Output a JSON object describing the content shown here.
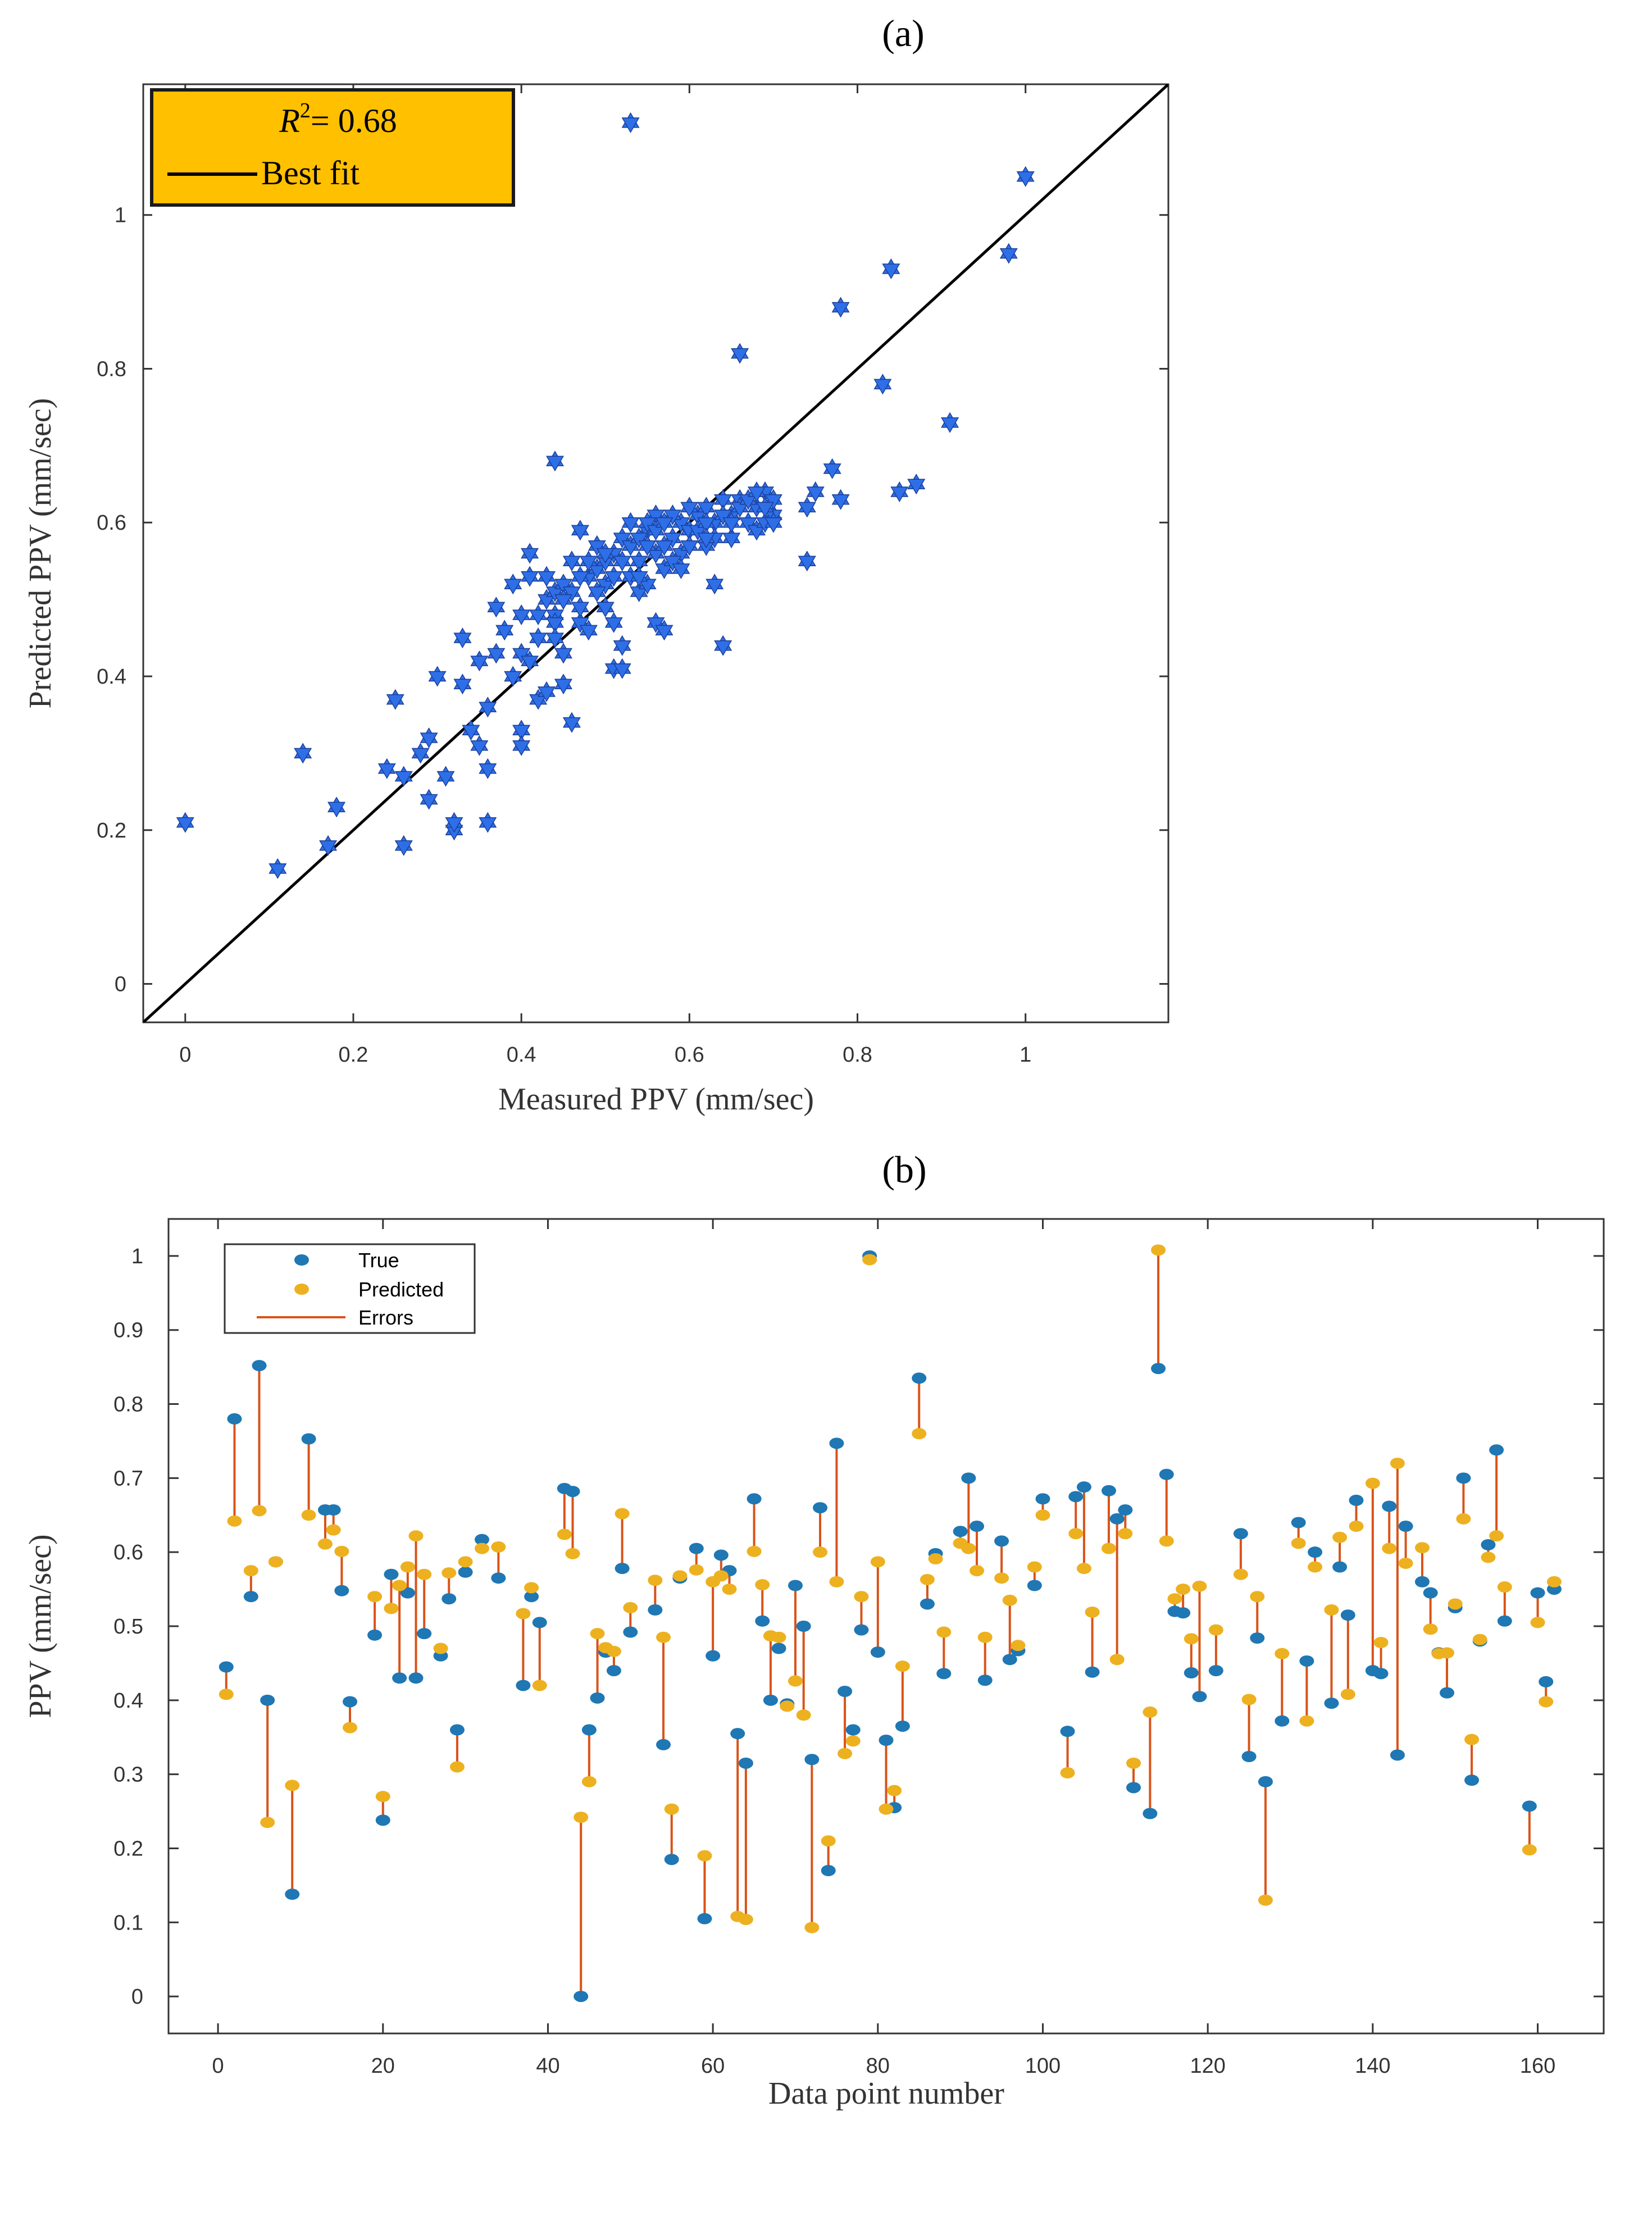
{
  "panel_a_label": "(a)",
  "panel_b_label": "(b)",
  "chart_data": [
    {
      "type": "scatter",
      "title": "",
      "xlabel": "Measured PPV (mm/sec)",
      "ylabel": "Predicted PPV (mm/sec)",
      "xlim": [
        -0.05,
        1.17
      ],
      "ylim": [
        -0.05,
        1.17
      ],
      "xticks": [
        0,
        0.2,
        0.4,
        0.6,
        0.8,
        1
      ],
      "yticks": [
        0,
        0.2,
        0.4,
        0.6,
        0.8,
        1
      ],
      "xtick_labels": [
        "0",
        "0.2",
        "0.4",
        "0.6",
        "0.8",
        "1"
      ],
      "ytick_labels": [
        "0",
        "0.2",
        "0.4",
        "0.6",
        "0.8",
        "1"
      ],
      "legend": {
        "position": "top-left",
        "r2_text": "R",
        "r2_value": "= 0.68",
        "best_fit_label": "Best fit",
        "background": "#FFC000"
      },
      "marker_color": "#2E6FE8",
      "fit_line": {
        "slope": 1,
        "intercept": 0,
        "color": "#000000"
      },
      "points": [
        [
          0.0,
          0.21
        ],
        [
          0.11,
          0.15
        ],
        [
          0.14,
          0.3
        ],
        [
          0.17,
          0.18
        ],
        [
          0.18,
          0.23
        ],
        [
          0.24,
          0.28
        ],
        [
          0.25,
          0.37
        ],
        [
          0.26,
          0.27
        ],
        [
          0.26,
          0.18
        ],
        [
          0.28,
          0.3
        ],
        [
          0.29,
          0.32
        ],
        [
          0.29,
          0.24
        ],
        [
          0.3,
          0.4
        ],
        [
          0.31,
          0.27
        ],
        [
          0.32,
          0.2
        ],
        [
          0.32,
          0.21
        ],
        [
          0.33,
          0.45
        ],
        [
          0.33,
          0.39
        ],
        [
          0.34,
          0.33
        ],
        [
          0.35,
          0.31
        ],
        [
          0.35,
          0.42
        ],
        [
          0.36,
          0.21
        ],
        [
          0.36,
          0.36
        ],
        [
          0.36,
          0.28
        ],
        [
          0.37,
          0.43
        ],
        [
          0.37,
          0.49
        ],
        [
          0.38,
          0.46
        ],
        [
          0.39,
          0.4
        ],
        [
          0.39,
          0.52
        ],
        [
          0.4,
          0.33
        ],
        [
          0.4,
          0.31
        ],
        [
          0.4,
          0.43
        ],
        [
          0.4,
          0.48
        ],
        [
          0.41,
          0.56
        ],
        [
          0.41,
          0.42
        ],
        [
          0.42,
          0.37
        ],
        [
          0.42,
          0.45
        ],
        [
          0.43,
          0.38
        ],
        [
          0.43,
          0.5
        ],
        [
          0.43,
          0.53
        ],
        [
          0.44,
          0.48
        ],
        [
          0.44,
          0.51
        ],
        [
          0.44,
          0.47
        ],
        [
          0.44,
          0.68
        ],
        [
          0.45,
          0.39
        ],
        [
          0.45,
          0.43
        ],
        [
          0.45,
          0.52
        ],
        [
          0.46,
          0.55
        ],
        [
          0.46,
          0.34
        ],
        [
          0.47,
          0.59
        ],
        [
          0.47,
          0.47
        ],
        [
          0.47,
          0.49
        ],
        [
          0.48,
          0.53
        ],
        [
          0.49,
          0.54
        ],
        [
          0.49,
          0.57
        ],
        [
          0.5,
          0.55
        ],
        [
          0.5,
          0.52
        ],
        [
          0.51,
          0.41
        ],
        [
          0.51,
          0.47
        ],
        [
          0.51,
          0.56
        ],
        [
          0.52,
          0.58
        ],
        [
          0.52,
          0.41
        ],
        [
          0.52,
          0.44
        ],
        [
          0.53,
          0.53
        ],
        [
          0.53,
          0.57
        ],
        [
          0.53,
          1.12
        ],
        [
          0.54,
          0.55
        ],
        [
          0.54,
          0.51
        ],
        [
          0.55,
          0.59
        ],
        [
          0.55,
          0.52
        ],
        [
          0.56,
          0.56
        ],
        [
          0.56,
          0.47
        ],
        [
          0.56,
          0.61
        ],
        [
          0.57,
          0.54
        ],
        [
          0.57,
          0.46
        ],
        [
          0.58,
          0.58
        ],
        [
          0.59,
          0.6
        ],
        [
          0.59,
          0.56
        ],
        [
          0.6,
          0.59
        ],
        [
          0.61,
          0.61
        ],
        [
          0.62,
          0.57
        ],
        [
          0.62,
          0.62
        ],
        [
          0.63,
          0.52
        ],
        [
          0.63,
          0.6
        ],
        [
          0.64,
          0.63
        ],
        [
          0.64,
          0.44
        ],
        [
          0.65,
          0.58
        ],
        [
          0.65,
          0.61
        ],
        [
          0.66,
          0.82
        ],
        [
          0.66,
          0.63
        ],
        [
          0.67,
          0.6
        ],
        [
          0.68,
          0.62
        ],
        [
          0.69,
          0.64
        ],
        [
          0.7,
          0.61
        ],
        [
          0.7,
          0.63
        ],
        [
          0.74,
          0.62
        ],
        [
          0.74,
          0.55
        ],
        [
          0.75,
          0.64
        ],
        [
          0.77,
          0.67
        ],
        [
          0.78,
          0.63
        ],
        [
          0.78,
          0.88
        ],
        [
          0.83,
          0.78
        ],
        [
          0.84,
          0.93
        ],
        [
          0.85,
          0.64
        ],
        [
          0.87,
          0.65
        ],
        [
          0.91,
          0.73
        ],
        [
          0.98,
          0.95
        ],
        [
          1.0,
          1.05
        ],
        [
          0.5,
          0.56
        ],
        [
          0.51,
          0.53
        ],
        [
          0.52,
          0.55
        ],
        [
          0.54,
          0.58
        ],
        [
          0.55,
          0.6
        ],
        [
          0.57,
          0.57
        ],
        [
          0.58,
          0.55
        ],
        [
          0.6,
          0.57
        ],
        [
          0.61,
          0.59
        ],
        [
          0.62,
          0.6
        ],
        [
          0.64,
          0.61
        ],
        [
          0.66,
          0.62
        ],
        [
          0.67,
          0.63
        ],
        [
          0.68,
          0.59
        ],
        [
          0.69,
          0.6
        ],
        [
          0.48,
          0.55
        ],
        [
          0.49,
          0.51
        ],
        [
          0.5,
          0.49
        ],
        [
          0.46,
          0.51
        ],
        [
          0.47,
          0.53
        ],
        [
          0.53,
          0.6
        ],
        [
          0.54,
          0.53
        ],
        [
          0.56,
          0.59
        ],
        [
          0.58,
          0.61
        ],
        [
          0.59,
          0.54
        ],
        [
          0.63,
          0.58
        ],
        [
          0.65,
          0.6
        ],
        [
          0.68,
          0.64
        ],
        [
          0.69,
          0.62
        ],
        [
          0.7,
          0.6
        ],
        [
          0.45,
          0.5
        ],
        [
          0.44,
          0.45
        ],
        [
          0.42,
          0.48
        ],
        [
          0.41,
          0.53
        ],
        [
          0.48,
          0.46
        ],
        [
          0.55,
          0.57
        ],
        [
          0.57,
          0.6
        ],
        [
          0.6,
          0.62
        ],
        [
          0.62,
          0.58
        ]
      ]
    },
    {
      "type": "scatter",
      "title": "",
      "xlabel": "Data point number",
      "ylabel": "PPV (mm/sec)",
      "xlim": [
        -6,
        168
      ],
      "ylim": [
        -0.05,
        1.05
      ],
      "xticks": [
        0,
        20,
        40,
        60,
        80,
        100,
        120,
        140,
        160
      ],
      "yticks": [
        0,
        0.1,
        0.2,
        0.3,
        0.4,
        0.5,
        0.6,
        0.7,
        0.8,
        0.9,
        1
      ],
      "xtick_labels": [
        "0",
        "20",
        "40",
        "60",
        "80",
        "100",
        "120",
        "140",
        "160"
      ],
      "ytick_labels": [
        "0",
        "0.1",
        "0.2",
        "0.3",
        "0.4",
        "0.5",
        "0.6",
        "0.7",
        "0.8",
        "0.9",
        "1"
      ],
      "legend": {
        "position": "top-left",
        "entries": [
          "True",
          "Predicted",
          "Errors"
        ]
      },
      "colors": {
        "true": "#1F77B4",
        "predicted": "#EDB120",
        "errors": "#D95319"
      },
      "series": [
        {
          "name": "True",
          "values": [
            0.445,
            0.78,
            0.54,
            0.852,
            0.4,
            0.587,
            0.138,
            0.753,
            0.657,
            0.657,
            0.548,
            0.398,
            0.488,
            0.238,
            0.57,
            0.43,
            0.545,
            0.43,
            0.49,
            0.46,
            0.537,
            0.36,
            0.573,
            0.617,
            0.565,
            0.42,
            0.54,
            0.505,
            0.686,
            0.682,
            0.0,
            0.36,
            0.403,
            0.465,
            0.44,
            0.578,
            0.492,
            0.522,
            0.34,
            0.185,
            0.565,
            0.605,
            0.105,
            0.46,
            0.596,
            0.575,
            0.355,
            0.315,
            0.672,
            0.507,
            0.4,
            0.47,
            0.395,
            0.555,
            0.5,
            0.32,
            0.66,
            0.17,
            0.747,
            0.412,
            0.36,
            0.495,
            1.0,
            0.465,
            0.346,
            0.255,
            0.365,
            0.835,
            0.53,
            0.598,
            0.436,
            0.628,
            0.7,
            0.635,
            0.427,
            0.615,
            0.455,
            0.467,
            0.555,
            0.672,
            0.358,
            0.675,
            0.688,
            0.438,
            0.683,
            0.645,
            0.657,
            0.282,
            0.247,
            0.848,
            0.705,
            0.52,
            0.518,
            0.437,
            0.405,
            0.44,
            0.625,
            0.324,
            0.484,
            0.29,
            0.372,
            0.64,
            0.453,
            0.6,
            0.396,
            0.58,
            0.515,
            0.67,
            0.44,
            0.436,
            0.662,
            0.326,
            0.635,
            0.56,
            0.545,
            0.464,
            0.41,
            0.525,
            0.7,
            0.292,
            0.48,
            0.61,
            0.738,
            0.507,
            0.257,
            0.545,
            0.425,
            0.55
          ],
          "x": [
            1,
            2,
            4,
            5,
            6,
            7,
            9,
            11,
            13,
            14,
            15,
            16,
            19,
            20,
            21,
            22,
            23,
            24,
            25,
            27,
            28,
            29,
            30,
            32,
            34,
            37,
            38,
            39,
            42,
            43,
            44,
            45,
            46,
            47,
            48,
            49,
            50,
            53,
            54,
            55,
            56,
            58,
            59,
            60,
            61,
            62,
            63,
            64,
            65,
            66,
            67,
            68,
            69,
            70,
            71,
            72,
            73,
            74,
            75,
            76,
            77,
            78,
            79,
            80,
            81,
            82,
            83,
            85,
            86,
            87,
            88,
            90,
            91,
            92,
            93,
            95,
            96,
            97,
            99,
            100,
            103,
            104,
            105,
            106,
            108,
            109,
            110,
            111,
            113,
            114,
            115,
            116,
            117,
            118,
            119,
            121,
            124,
            125,
            126,
            127,
            129,
            131,
            132,
            133,
            135,
            136,
            137,
            138,
            140,
            141,
            142,
            143,
            144,
            146,
            147,
            148,
            149,
            150,
            151,
            152,
            153,
            154,
            155,
            156,
            159,
            160,
            161,
            162
          ]
        },
        {
          "name": "Predicted",
          "values": [
            0.408,
            0.642,
            0.575,
            0.656,
            0.235,
            0.587,
            0.285,
            0.65,
            0.611,
            0.63,
            0.601,
            0.363,
            0.54,
            0.27,
            0.524,
            0.555,
            0.58,
            0.622,
            0.57,
            0.47,
            0.572,
            0.31,
            0.587,
            0.605,
            0.607,
            0.517,
            0.552,
            0.42,
            0.624,
            0.598,
            0.242,
            0.29,
            0.49,
            0.471,
            0.466,
            0.652,
            0.525,
            0.562,
            0.485,
            0.253,
            0.568,
            0.576,
            0.19,
            0.56,
            0.568,
            0.55,
            0.108,
            0.104,
            0.601,
            0.556,
            0.487,
            0.485,
            0.392,
            0.426,
            0.38,
            0.093,
            0.6,
            0.21,
            0.56,
            0.328,
            0.345,
            0.54,
            0.995,
            0.587,
            0.253,
            0.278,
            0.446,
            0.76,
            0.563,
            0.591,
            0.492,
            0.612,
            0.605,
            0.575,
            0.485,
            0.565,
            0.535,
            0.474,
            0.58,
            0.65,
            0.302,
            0.625,
            0.578,
            0.519,
            0.605,
            0.455,
            0.625,
            0.315,
            0.384,
            1.008,
            0.615,
            0.537,
            0.55,
            0.483,
            0.554,
            0.495,
            0.57,
            0.401,
            0.54,
            0.13,
            0.463,
            0.612,
            0.372,
            0.58,
            0.522,
            0.62,
            0.408,
            0.635,
            0.693,
            0.478,
            0.605,
            0.72,
            0.585,
            0.606,
            0.496,
            0.463,
            0.464,
            0.53,
            0.645,
            0.347,
            0.482,
            0.593,
            0.622,
            0.553,
            0.198,
            0.505,
            0.398,
            0.56
          ],
          "x": [
            1,
            2,
            4,
            5,
            6,
            7,
            9,
            11,
            13,
            14,
            15,
            16,
            19,
            20,
            21,
            22,
            23,
            24,
            25,
            27,
            28,
            29,
            30,
            32,
            34,
            37,
            38,
            39,
            42,
            43,
            44,
            45,
            46,
            47,
            48,
            49,
            50,
            53,
            54,
            55,
            56,
            58,
            59,
            60,
            61,
            62,
            63,
            64,
            65,
            66,
            67,
            68,
            69,
            70,
            71,
            72,
            73,
            74,
            75,
            76,
            77,
            78,
            79,
            80,
            81,
            82,
            83,
            85,
            86,
            87,
            88,
            90,
            91,
            92,
            93,
            95,
            96,
            97,
            99,
            100,
            103,
            104,
            105,
            106,
            108,
            109,
            110,
            111,
            113,
            114,
            115,
            116,
            117,
            118,
            119,
            121,
            124,
            125,
            126,
            127,
            129,
            131,
            132,
            133,
            135,
            136,
            137,
            138,
            140,
            141,
            142,
            143,
            144,
            146,
            147,
            148,
            149,
            150,
            151,
            152,
            153,
            154,
            155,
            156,
            159,
            160,
            161,
            162
          ]
        }
      ]
    }
  ]
}
